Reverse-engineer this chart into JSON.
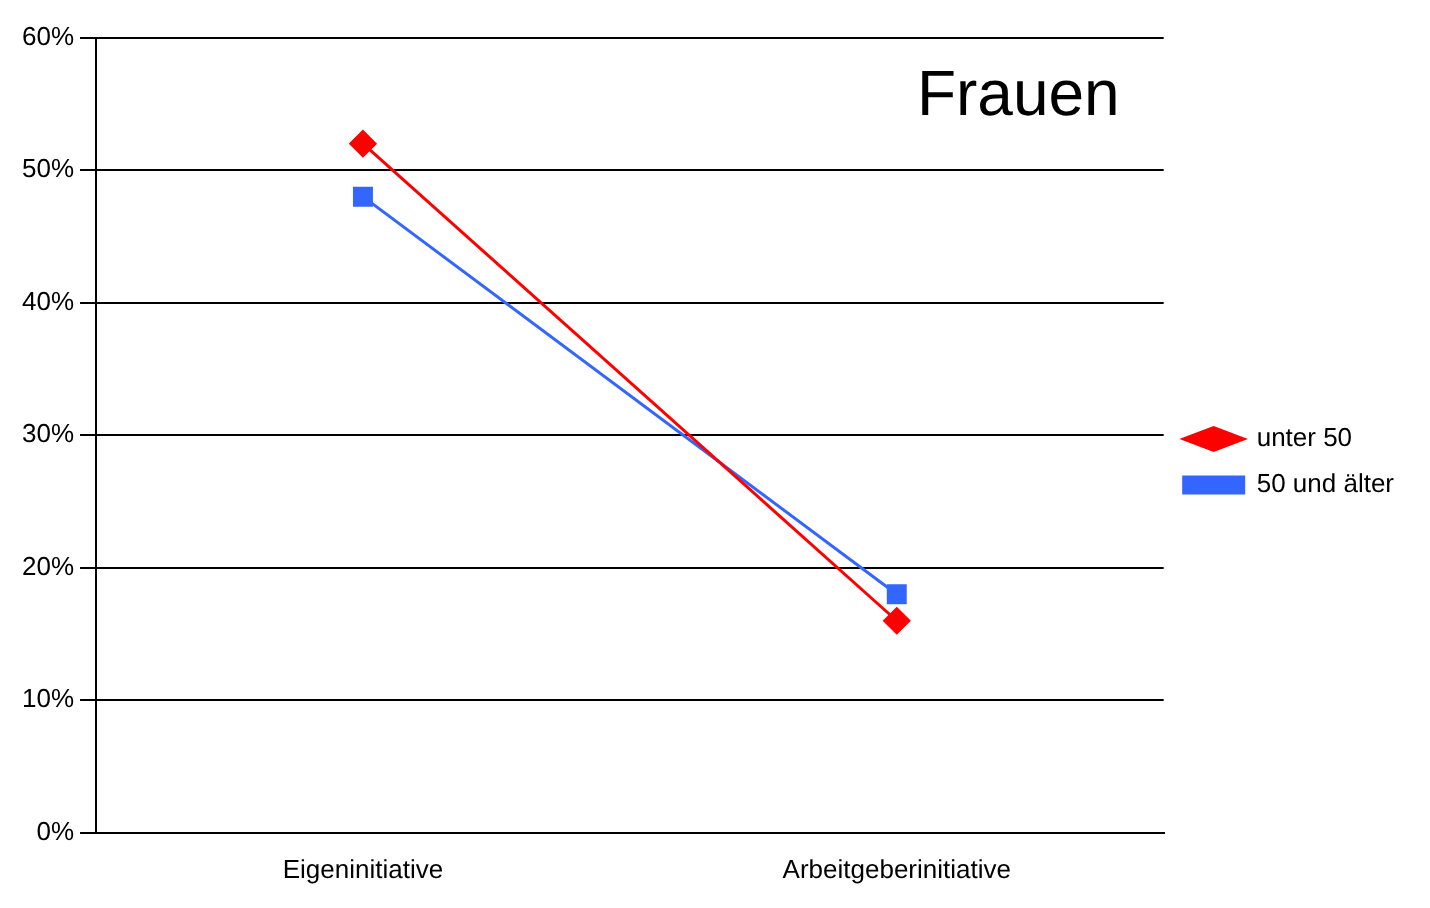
{
  "chart_data": {
    "type": "line",
    "title": "Frauen",
    "categories": [
      "Eigeninitiative",
      "Arbeitgeberinitiative"
    ],
    "series": [
      {
        "name": "unter 50",
        "color": "#ff0000",
        "marker": "diamond",
        "values": [
          52,
          16
        ]
      },
      {
        "name": "50 und älter",
        "color": "#3366ff",
        "marker": "square",
        "values": [
          48,
          18
        ]
      }
    ],
    "ylim": [
      0,
      60
    ],
    "yticks": [
      {
        "value": 0,
        "label": "0%"
      },
      {
        "value": 10,
        "label": "10%"
      },
      {
        "value": 20,
        "label": "20%"
      },
      {
        "value": 30,
        "label": "30%"
      },
      {
        "value": 40,
        "label": "40%"
      },
      {
        "value": 50,
        "label": "50%"
      },
      {
        "value": 60,
        "label": "60%"
      }
    ],
    "grid": "y",
    "legend": "right",
    "line_style": "solid"
  }
}
